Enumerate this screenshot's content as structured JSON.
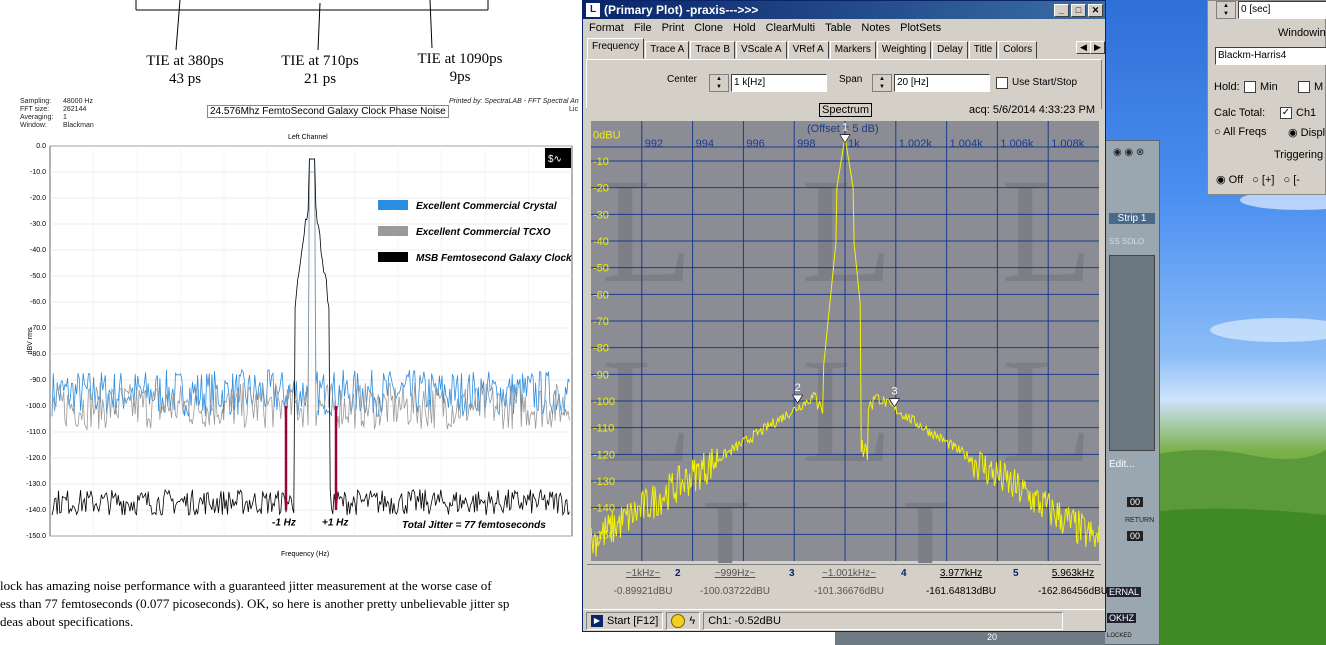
{
  "document": {
    "tie_labels": [
      {
        "title": "TIE at 380ps",
        "value": "43 ps"
      },
      {
        "title": "TIE at 710ps",
        "value": "21 ps"
      },
      {
        "title": "TIE at 1090ps",
        "value": "9ps"
      }
    ],
    "meta": {
      "keys": [
        "Sampling:",
        "FFT size:",
        "Averaging:",
        "Window:"
      ],
      "values": [
        "48000 Hz",
        "262144",
        "1",
        "Blackman"
      ],
      "printed_by": "Printed by: SpectraLAB - FFT Spectral An",
      "printed_by_2": "Lic"
    },
    "chart_title": "24.576Mhz FemtoSecond Galaxy Clock Phase Noise",
    "channel": "Left Channel",
    "ylabel": "dBV rms",
    "xlabel": "Frequency (Hz)",
    "yticks": [
      "0.0",
      "-10.0",
      "-20.0",
      "-30.0",
      "-40.0",
      "-50.0",
      "-60.0",
      "-70.0",
      "-80.0",
      "-90.0",
      "-100.0",
      "-110.0",
      "-120.0",
      "-130.0",
      "-140.0",
      "-150.0"
    ],
    "legend": [
      {
        "label": "Excellent Commercial Crystal",
        "color": "#2a8de0"
      },
      {
        "label": "Excellent Commercial TCXO",
        "color": "#9a9a9a"
      },
      {
        "label": "MSB Femtosecond Galaxy Clock",
        "color": "#000000"
      }
    ],
    "marker_minus": "-1 Hz",
    "marker_plus": "+1 Hz",
    "total_jitter": "Total Jitter = 77 femtoseconds",
    "paragraph": [
      "lock has amazing noise performance with a guaranteed jitter measurement at the worse case of",
      "ess than 77 femtoseconds (0.077 picoseconds). OK, so here is another pretty unbelievable jitter sp",
      "deas about specifications."
    ]
  },
  "window": {
    "title": "(Primary Plot) -praxis--->>>",
    "menu": [
      "Format",
      "File",
      "Print",
      "Clone",
      "Hold",
      "ClearMulti",
      "Table",
      "Notes",
      "PlotSets"
    ],
    "tabs": [
      "Frequency",
      "Trace A",
      "Trace B",
      "VScale A",
      "VRef A",
      "Markers",
      "Weighting",
      "Delay",
      "Title",
      "Colors"
    ],
    "center_label": "Center",
    "center_value": "1 k[Hz]",
    "span_label": "Span",
    "span_value": "20 [Hz]",
    "use_start_stop": "Use Start/Stop",
    "plot_label": "Spectrum",
    "acq": "acq: 5/6/2014 4:33:23 PM",
    "offset_label": "(Offset = 5 dB)",
    "y_unit": "0dBU",
    "xticks": [
      "992",
      "994",
      "996",
      "998",
      "1k",
      "1.002k",
      "1.004k",
      "1.006k",
      "1.008k"
    ],
    "yticks": [
      "-10",
      "-20",
      "-30",
      "-40",
      "-50",
      "-60",
      "-70",
      "-80",
      "-90",
      "-100",
      "-110",
      "-120",
      "-130",
      "-140",
      "-150"
    ],
    "marker_numbers": [
      "1",
      "2",
      "3"
    ],
    "markers": [
      {
        "num": "",
        "freq": "~1kHz~",
        "level": "-0.89921dBU"
      },
      {
        "num": "2",
        "freq": "~999Hz~",
        "level": "-100.03722dBU"
      },
      {
        "num": "3",
        "freq": "~1.001kHz~",
        "level": "-101.36676dBU"
      },
      {
        "num": "4",
        "freq": "3.977kHz",
        "level": "-161.64813dBU"
      },
      {
        "num": "5",
        "freq": "5.963kHz",
        "level": "-162.86456dBU"
      }
    ],
    "start_label": "Start [F12]",
    "status_ch": "Ch1: -0.52dBU"
  },
  "side_window": {
    "time_value": "0 [sec]",
    "windowing_label": "Windowing",
    "window_select": "Blackm-Harris4",
    "hold_label": "Hold:",
    "min_label": "Min",
    "max_label": "M",
    "calc_total": "Calc Total:",
    "ch1_label": "Ch1",
    "all_freqs": "All Freqs",
    "display_label": "Displ",
    "triggering_label": "Triggering",
    "trig_off": "Off",
    "trig_plus": "[+]",
    "trig_minus": "[-"
  },
  "back_window": {
    "strip_label": "Strip 1",
    "ss_label": "SS",
    "solo_label": "SOLO",
    "edit_label": "Edit...",
    "return_label": "RETURN",
    "button_value": "00",
    "ernal_label": "ERNAL",
    "okhz_label": "OKHZ",
    "locked_label": "LOCKED",
    "num_label": "20"
  },
  "chart_data": {
    "type": "line",
    "title": "24.576Mhz FemtoSecond Galaxy Clock Phase Noise",
    "xlabel": "Frequency (Hz)",
    "ylabel": "dBV rms",
    "ylim": [
      -150,
      0
    ],
    "series": [
      {
        "name": "Excellent Commercial Crystal",
        "floor": -95,
        "peak": -5
      },
      {
        "name": "Excellent Commercial TCXO",
        "floor": -100,
        "peak": -10
      },
      {
        "name": "MSB Femtosecond Galaxy Clock",
        "floor": -137,
        "peak": -5
      }
    ],
    "spectrum": {
      "xlim": [
        990,
        1010
      ],
      "ylim": [
        -160,
        5
      ],
      "peak": {
        "x": 1000,
        "y": -0.9
      },
      "markers": [
        {
          "x": 999,
          "y": -100.0
        },
        {
          "x": 1001,
          "y": -101.4
        }
      ],
      "floor": -147
    }
  }
}
